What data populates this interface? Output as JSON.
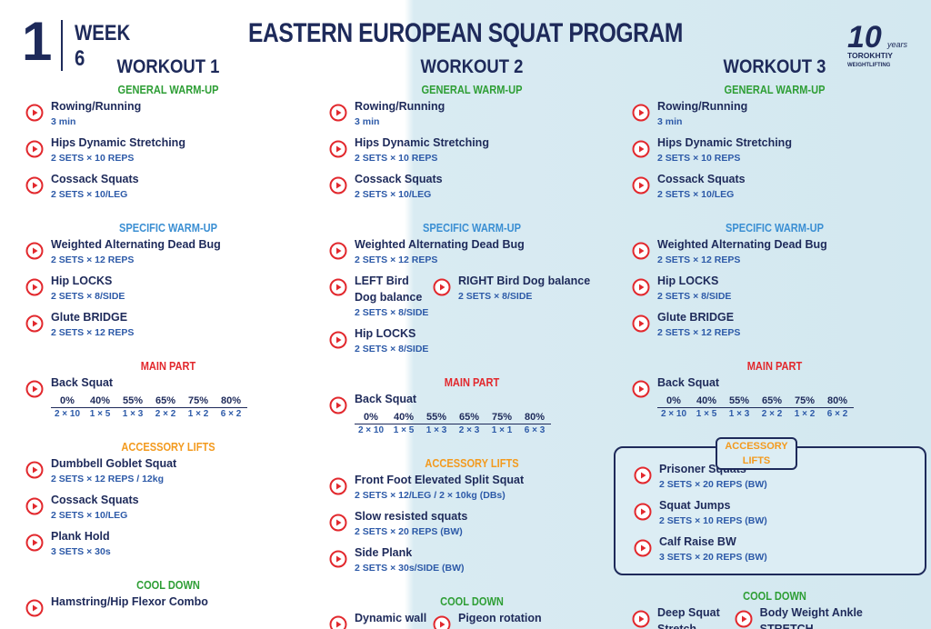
{
  "header": {
    "week_number": "1",
    "week_label": "WEEK",
    "week_value": "6",
    "title": "EASTERN EUROPEAN SQUAT PROGRAM",
    "logo": {
      "mark": "10",
      "tag": "years",
      "brand": "TOROKHTIY",
      "brand_sub": "WEIGHTLIFTING"
    }
  },
  "workouts": [
    {
      "title": "WORKOUT 1",
      "sections": [
        {
          "heading": "GENERAL WARM-UP",
          "color": "#2e9e35",
          "rows": [
            [
              {
                "name": "Rowing/Running",
                "detail": "3 min"
              }
            ],
            [
              {
                "name": "Hips Dynamic Stretching",
                "detail": "2 SETS × 10 REPS"
              }
            ],
            [
              {
                "name": "Cossack Squats",
                "detail": "2 SETS × 10/LEG"
              }
            ]
          ]
        },
        {
          "heading": "SPECIFIC WARM-UP",
          "color": "#3b8fd3",
          "rows": [
            [
              {
                "name": "Weighted Alternating Dead Bug",
                "detail": "2 SETS × 12 REPS"
              }
            ],
            [
              {
                "name": "Hip LOCKS",
                "detail": "2 SETS × 8/SIDE"
              }
            ],
            [
              {
                "name": "Glute BRIDGE",
                "detail": "2 SETS × 12 REPS"
              }
            ]
          ]
        },
        {
          "heading": "MAIN PART",
          "color": "#e2282d",
          "rows": [
            [
              {
                "name": "Back Squat",
                "percents": [
                  "0%",
                  "40%",
                  "55%",
                  "65%",
                  "75%",
                  "80%"
                ],
                "schemes": [
                  "2 × 10",
                  "1 × 5",
                  "1 × 3",
                  "2 × 2",
                  "1 × 2",
                  "6 × 2"
                ]
              }
            ]
          ]
        },
        {
          "heading": "ACCESSORY LIFTS",
          "color": "#f39a1e",
          "rows": [
            [
              {
                "name": "Dumbbell Goblet Squat",
                "detail": "2 SETS × 12 REPS / 12kg"
              }
            ],
            [
              {
                "name": "Cossack Squats",
                "detail": "2 SETS × 10/LEG"
              }
            ],
            [
              {
                "name": "Plank Hold",
                "detail": "3 SETS × 30s"
              }
            ]
          ]
        },
        {
          "heading": "COOL DOWN",
          "color": "#2e9e35",
          "rows": [
            [
              {
                "name": "Hamstring/Hip Flexor Combo"
              }
            ]
          ]
        }
      ]
    },
    {
      "title": "WORKOUT 2",
      "sections": [
        {
          "heading": "GENERAL WARM-UP",
          "color": "#2e9e35",
          "rows": [
            [
              {
                "name": "Rowing/Running",
                "detail": "3 min"
              }
            ],
            [
              {
                "name": "Hips Dynamic Stretching",
                "detail": "2 SETS × 10 REPS"
              }
            ],
            [
              {
                "name": "Cossack Squats",
                "detail": "2 SETS × 10/LEG"
              }
            ]
          ]
        },
        {
          "heading": "SPECIFIC WARM-UP",
          "color": "#3b8fd3",
          "rows": [
            [
              {
                "name": "Weighted Alternating Dead Bug",
                "detail": "2 SETS × 12 REPS"
              }
            ],
            [
              {
                "name": "LEFT Bird Dog balance",
                "detail": "2 SETS × 8/SIDE"
              },
              {
                "name": "RIGHT Bird Dog balance",
                "detail": "2 SETS × 8/SIDE"
              }
            ],
            [
              {
                "name": "Hip LOCKS",
                "detail": "2 SETS × 8/SIDE"
              }
            ]
          ]
        },
        {
          "heading": "MAIN PART",
          "color": "#e2282d",
          "rows": [
            [
              {
                "name": "Back Squat",
                "percents": [
                  "0%",
                  "40%",
                  "55%",
                  "65%",
                  "75%",
                  "80%"
                ],
                "schemes": [
                  "2 × 10",
                  "1 × 5",
                  "1 × 3",
                  "2 × 3",
                  "1 × 1",
                  "6 × 3"
                ]
              }
            ]
          ]
        },
        {
          "heading": "ACCESSORY LIFTS",
          "color": "#f39a1e",
          "rows": [
            [
              {
                "name": "Front Foot Elevated Split Squat",
                "detail": "2 SETS × 12/LEG / 2 × 10kg (DBs)"
              }
            ],
            [
              {
                "name": "Slow resisted squats",
                "detail": "2 SETS × 20 REPS (BW)"
              }
            ],
            [
              {
                "name": "Side Plank",
                "detail": "2 SETS × 30s/SIDE (BW)"
              }
            ]
          ]
        },
        {
          "heading": "COOL DOWN",
          "color": "#2e9e35",
          "rows": [
            [
              {
                "name": "Dynamic wall quad stretch"
              },
              {
                "name": "Pigeon rotation"
              }
            ]
          ]
        }
      ]
    },
    {
      "title": "WORKOUT 3",
      "sections": [
        {
          "heading": "GENERAL WARM-UP",
          "color": "#2e9e35",
          "rows": [
            [
              {
                "name": "Rowing/Running",
                "detail": "3 min"
              }
            ],
            [
              {
                "name": "Hips Dynamic Stretching",
                "detail": "2 SETS × 10 REPS"
              }
            ],
            [
              {
                "name": "Cossack Squats",
                "detail": "2 SETS × 10/LEG"
              }
            ]
          ]
        },
        {
          "heading": "SPECIFIC WARM-UP",
          "color": "#3b8fd3",
          "rows": [
            [
              {
                "name": "Weighted Alternating Dead Bug",
                "detail": "2 SETS × 12 REPS"
              }
            ],
            [
              {
                "name": "Hip LOCKS",
                "detail": "2 SETS × 8/SIDE"
              }
            ],
            [
              {
                "name": "Glute BRIDGE",
                "detail": "2 SETS × 12 REPS"
              }
            ]
          ]
        },
        {
          "heading": "MAIN PART",
          "color": "#e2282d",
          "rows": [
            [
              {
                "name": "Back Squat",
                "percents": [
                  "0%",
                  "40%",
                  "55%",
                  "65%",
                  "75%",
                  "80%"
                ],
                "schemes": [
                  "2 × 10",
                  "1 × 5",
                  "1 × 3",
                  "2 × 2",
                  "1 × 2",
                  "6 × 2"
                ]
              }
            ]
          ]
        },
        {
          "heading": "ACCESSORY LIFTS",
          "color": "#f39a1e",
          "boxed": true,
          "rows": [
            [
              {
                "name": "Prisoner Squats",
                "detail": "2 SETS × 20 REPS (BW)"
              }
            ],
            [
              {
                "name": "Squat Jumps",
                "detail": "2 SETS × 10 REPS (BW)"
              }
            ],
            [
              {
                "name": "Calf Raise BW",
                "detail": "3 SETS × 20 REPS (BW)"
              }
            ]
          ]
        },
        {
          "heading": "COOL DOWN",
          "color": "#2e9e35",
          "rows": [
            [
              {
                "name": "Deep Squat Stretch (barbell)"
              },
              {
                "name": "Body Weight Ankle STRETCH"
              }
            ]
          ]
        }
      ]
    }
  ]
}
